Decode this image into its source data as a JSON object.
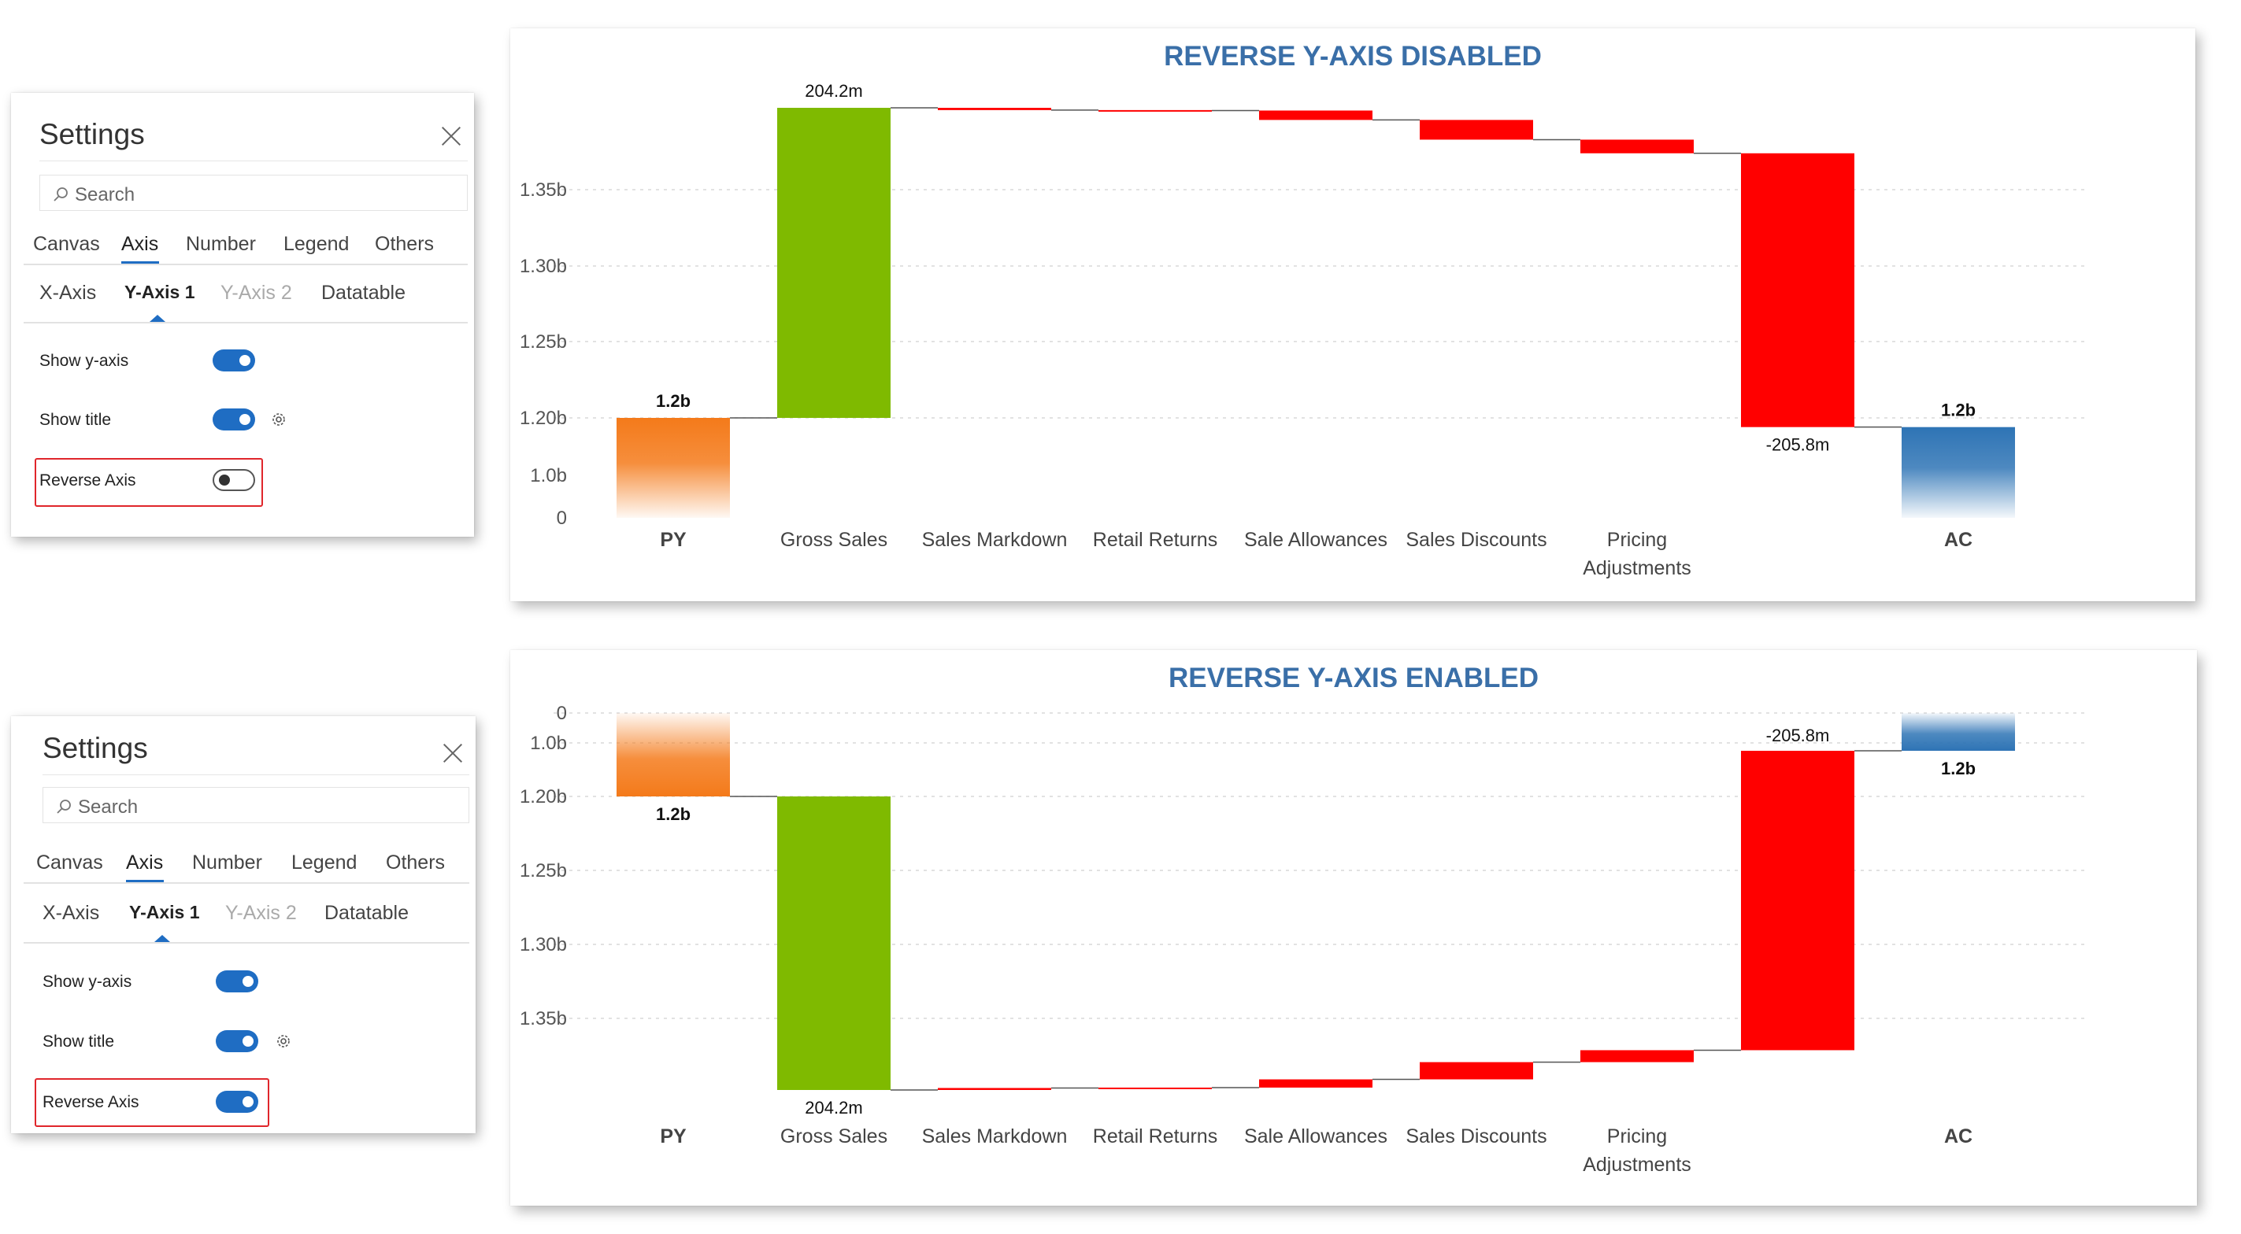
{
  "panels": [
    {
      "title": "Settings",
      "search_placeholder": "Search",
      "tabs": [
        "Canvas",
        "Axis",
        "Number",
        "Legend",
        "Others"
      ],
      "active_tab": "Axis",
      "subtabs": [
        "X-Axis",
        "Y-Axis 1",
        "Y-Axis 2",
        "Datatable"
      ],
      "active_subtab": "Y-Axis 1",
      "disabled_subtab": "Y-Axis 2",
      "show_y_axis_label": "Show y-axis",
      "show_y_axis": true,
      "show_title_label": "Show title",
      "show_title": true,
      "reverse_axis_label": "Reverse Axis",
      "reverse_axis": false
    },
    {
      "title": "Settings",
      "search_placeholder": "Search",
      "tabs": [
        "Canvas",
        "Axis",
        "Number",
        "Legend",
        "Others"
      ],
      "active_tab": "Axis",
      "subtabs": [
        "X-Axis",
        "Y-Axis 1",
        "Y-Axis 2",
        "Datatable"
      ],
      "active_subtab": "Y-Axis 1",
      "disabled_subtab": "Y-Axis 2",
      "show_y_axis_label": "Show y-axis",
      "show_y_axis": true,
      "show_title_label": "Show title",
      "show_title": true,
      "reverse_axis_label": "Reverse Axis",
      "reverse_axis": true
    }
  ],
  "colors": {
    "accent": "#1f6dc3",
    "title": "#3a6fa8",
    "py_bar": "#f47a1a",
    "increase_bar": "#7fba00",
    "decrease_bar": "#ff0000",
    "ac_bar": "#2e74b5",
    "highlight": "#e0262b"
  },
  "chart_data": [
    {
      "type": "bar",
      "subtype": "waterfall",
      "title": "REVERSE Y-AXIS DISABLED",
      "reversed": false,
      "y_tick_labels": [
        "0",
        "1.0b",
        "1.20b",
        "1.25b",
        "1.30b",
        "1.35b"
      ],
      "categories": [
        "PY",
        "Gross Sales",
        "Sales Markdown",
        "Retail Returns",
        "Sale Allowances",
        "Sales Discounts",
        "Pricing Adjustments",
        "",
        "AC"
      ],
      "bold_categories": [
        "PY",
        "AC"
      ],
      "bars": [
        {
          "label": "PY",
          "kind": "total",
          "start": 0,
          "end": 1.2,
          "value_label": "1.2b"
        },
        {
          "label": "Gross Sales",
          "kind": "increase",
          "start": 1.2,
          "end": 1.404,
          "value_label": "204.2m"
        },
        {
          "label": "Sales Markdown",
          "kind": "decrease",
          "start": 1.404,
          "end": 1.4025
        },
        {
          "label": "Retail Returns",
          "kind": "decrease",
          "start": 1.4025,
          "end": 1.4022
        },
        {
          "label": "Sale Allowances",
          "kind": "decrease",
          "start": 1.4022,
          "end": 1.396
        },
        {
          "label": "Sales Discounts",
          "kind": "decrease",
          "start": 1.396,
          "end": 1.383
        },
        {
          "label": "Pricing Adjustments",
          "kind": "decrease",
          "start": 1.383,
          "end": 1.374
        },
        {
          "label": "",
          "kind": "decrease",
          "start": 1.374,
          "end": 1.168,
          "value_label": "-205.8m"
        },
        {
          "label": "AC",
          "kind": "total",
          "start": 0,
          "end": 1.168,
          "value_label": "1.2b"
        }
      ]
    },
    {
      "type": "bar",
      "subtype": "waterfall",
      "title": "REVERSE Y-AXIS ENABLED",
      "reversed": true,
      "y_tick_labels": [
        "0",
        "1.0b",
        "1.20b",
        "1.25b",
        "1.30b",
        "1.35b"
      ],
      "categories": [
        "PY",
        "Gross Sales",
        "Sales Markdown",
        "Retail Returns",
        "Sale Allowances",
        "Sales Discounts",
        "Pricing Adjustments",
        "",
        "AC"
      ],
      "bold_categories": [
        "PY",
        "AC"
      ],
      "bars": [
        {
          "label": "PY",
          "kind": "total",
          "start": 0,
          "end": 1.2,
          "value_label": "1.2b"
        },
        {
          "label": "Gross Sales",
          "kind": "increase",
          "start": 1.2,
          "end": 1.404,
          "value_label": "204.2m"
        },
        {
          "label": "Sales Markdown",
          "kind": "decrease",
          "start": 1.404,
          "end": 1.4025
        },
        {
          "label": "Retail Returns",
          "kind": "decrease",
          "start": 1.4025,
          "end": 1.4022
        },
        {
          "label": "Sale Allowances",
          "kind": "decrease",
          "start": 1.4022,
          "end": 1.396
        },
        {
          "label": "Sales Discounts",
          "kind": "decrease",
          "start": 1.396,
          "end": 1.383
        },
        {
          "label": "Pricing Adjustments",
          "kind": "decrease",
          "start": 1.383,
          "end": 1.374
        },
        {
          "label": "",
          "kind": "decrease",
          "start": 1.374,
          "end": 1.168,
          "value_label": "-205.8m"
        },
        {
          "label": "AC",
          "kind": "total",
          "start": 0,
          "end": 1.168,
          "value_label": "1.2b"
        }
      ]
    }
  ]
}
